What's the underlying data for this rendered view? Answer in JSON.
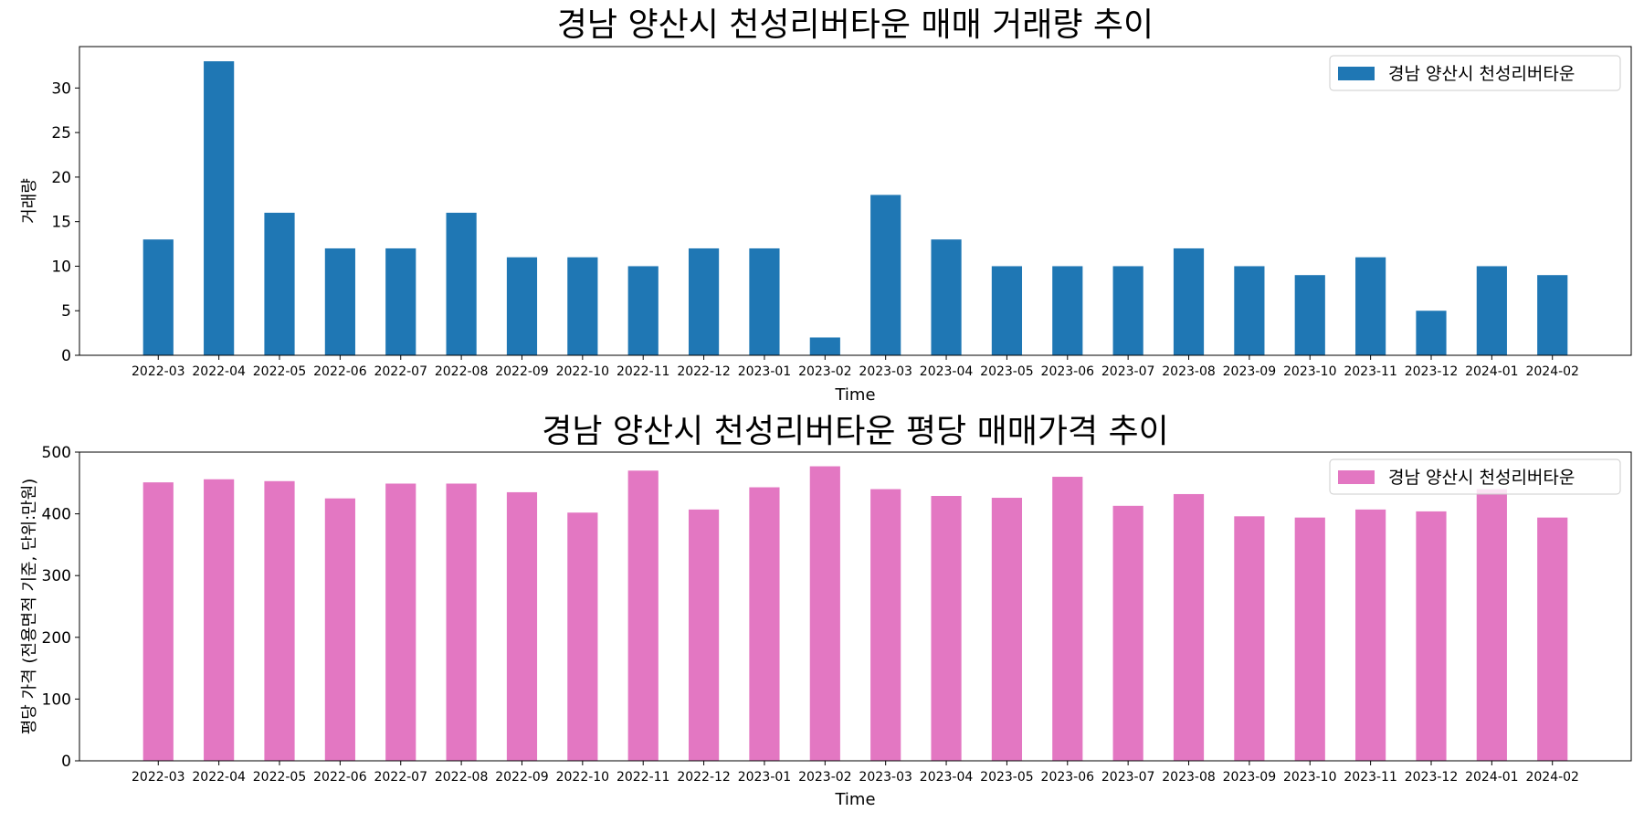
{
  "charts": [
    {
      "chart_data": {
        "type": "bar",
        "title": "경남 양산시 천성리버타운 매매 거래량 추이",
        "xlabel": "Time",
        "ylabel": "거래량",
        "ylim": [
          0,
          34.65
        ],
        "yticks": [
          0,
          5,
          10,
          15,
          20,
          25,
          30
        ],
        "legend_position": "top-right",
        "grid": false,
        "categories": [
          "2022-03",
          "2022-04",
          "2022-05",
          "2022-06",
          "2022-07",
          "2022-08",
          "2022-09",
          "2022-10",
          "2022-11",
          "2022-12",
          "2023-01",
          "2023-02",
          "2023-03",
          "2023-04",
          "2023-05",
          "2023-06",
          "2023-07",
          "2023-08",
          "2023-09",
          "2023-10",
          "2023-11",
          "2023-12",
          "2024-01",
          "2024-02"
        ],
        "series": [
          {
            "name": "경남 양산시 천성리버타운",
            "color": "#1f77b4",
            "values": [
              13,
              33,
              16,
              12,
              12,
              16,
              11,
              11,
              10,
              12,
              12,
              2,
              18,
              13,
              10,
              10,
              10,
              12,
              10,
              9,
              11,
              5,
              10,
              9
            ]
          }
        ]
      }
    },
    {
      "chart_data": {
        "type": "bar",
        "title": "경남 양산시 천성리버타운 평당 매매가격 추이",
        "xlabel": "Time",
        "ylabel": "평당 가격 (전용면적 기준, 단위:만원)",
        "ylim": [
          0,
          500
        ],
        "yticks": [
          0,
          100,
          200,
          300,
          400,
          500
        ],
        "legend_position": "top-right",
        "grid": false,
        "categories": [
          "2022-03",
          "2022-04",
          "2022-05",
          "2022-06",
          "2022-07",
          "2022-08",
          "2022-09",
          "2022-10",
          "2022-11",
          "2022-12",
          "2023-01",
          "2023-02",
          "2023-03",
          "2023-04",
          "2023-05",
          "2023-06",
          "2023-07",
          "2023-08",
          "2023-09",
          "2023-10",
          "2023-11",
          "2023-12",
          "2024-01",
          "2024-02"
        ],
        "series": [
          {
            "name": "경남 양산시 천성리버타운",
            "color": "#e377c2",
            "values": [
              451,
              456,
              453,
              425,
              449,
              449,
              435,
              402,
              470,
              407,
              443,
              477,
              440,
              429,
              426,
              460,
              413,
              432,
              396,
              394,
              407,
              404,
              440,
              394
            ]
          }
        ]
      }
    }
  ]
}
